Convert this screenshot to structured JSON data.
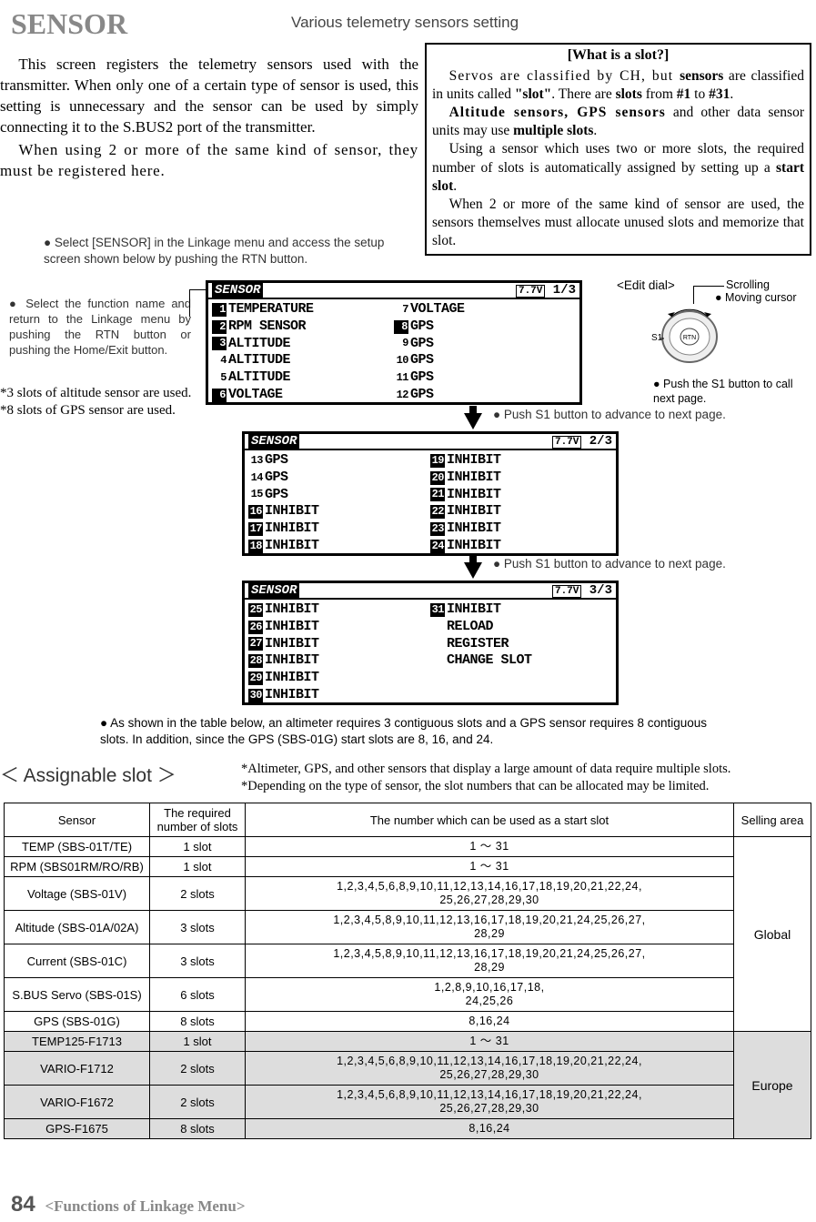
{
  "title": "SENSOR",
  "subtitle": "Various telemetry sensors setting",
  "intro": {
    "p1": "This screen registers the telemetry sensors used with the transmitter. When only one of a certain type of sensor is used, this setting is unnecessary and the sensor can be used by simply connecting it to the S.BUS2 port of the transmitter.",
    "p2": "When using 2 or more of the same kind of sensor, they must be registered here.",
    "bullet": "Select [SENSOR] in the Linkage menu and access the setup screen shown below by pushing the RTN button."
  },
  "slotbox": {
    "title": "[What is a slot?]",
    "p1_a": "Servos are classified by CH, but ",
    "p1_b": "sensors",
    "p1_c": " are classified in units called ",
    "p1_d": "\"slot\"",
    "p1_e": ". There are ",
    "p1_f": "slots",
    "p1_g": " from ",
    "p1_h": "#1",
    "p1_i": " to ",
    "p1_j": "#31",
    "p1_k": ".",
    "p2_a": "Altitude sensors, GPS sensors",
    "p2_b": " and other data sensor units may use ",
    "p2_c": "multiple slots",
    "p2_d": ".",
    "p3_a": "Using a sensor which uses two or more slots, the required number of slots is automatically assigned by setting up a ",
    "p3_b": "start slot",
    "p3_c": ".",
    "p4": "When 2 or more of the same kind of sensor are used, the sensors themselves must allocate unused slots and memorize that slot."
  },
  "left_note": "Select the function name and return to the Linkage menu by pushing the RTN button or pushing the Home/Exit button.",
  "star_notes": {
    "a": "*3 slots of altitude sensor are used.",
    "b": "*8 slots of GPS sensor are used."
  },
  "push_note": "Push S1 button to advance to next page.",
  "dial": {
    "edit": "<Edit dial>",
    "scroll": "Scrolling",
    "cursor": "Moving cursor",
    "s1": "Push the S1 button to call next page.",
    "s1_label": "S1",
    "rtn_label": "RTN"
  },
  "lcd_header": "SENSOR",
  "lcd_voltage": "7.7V",
  "lcd1": {
    "page": "1/3",
    "left": [
      {
        "n": "1",
        "t": "TEMPERATURE",
        "inv": true
      },
      {
        "n": "2",
        "t": "RPM SENSOR",
        "inv": true
      },
      {
        "n": "3",
        "t": "ALTITUDE",
        "inv": true
      },
      {
        "n": "4",
        "t": "ALTITUDE",
        "inv": false
      },
      {
        "n": "5",
        "t": "ALTITUDE",
        "inv": false
      },
      {
        "n": "6",
        "t": "VOLTAGE",
        "inv": true
      }
    ],
    "right": [
      {
        "n": "7",
        "t": "VOLTAGE",
        "inv": false
      },
      {
        "n": "8",
        "t": "GPS",
        "inv": true
      },
      {
        "n": "9",
        "t": "GPS",
        "inv": false
      },
      {
        "n": "10",
        "t": "GPS",
        "inv": false
      },
      {
        "n": "11",
        "t": "GPS",
        "inv": false
      },
      {
        "n": "12",
        "t": "GPS",
        "inv": false
      }
    ]
  },
  "lcd2": {
    "page": "2/3",
    "left": [
      {
        "n": "13",
        "t": "GPS",
        "inv": false
      },
      {
        "n": "14",
        "t": "GPS",
        "inv": false
      },
      {
        "n": "15",
        "t": "GPS",
        "inv": false
      },
      {
        "n": "16",
        "t": "INHIBIT",
        "inv": true
      },
      {
        "n": "17",
        "t": "INHIBIT",
        "inv": true
      },
      {
        "n": "18",
        "t": "INHIBIT",
        "inv": true
      }
    ],
    "right": [
      {
        "n": "19",
        "t": "INHIBIT",
        "inv": true
      },
      {
        "n": "20",
        "t": "INHIBIT",
        "inv": true
      },
      {
        "n": "21",
        "t": "INHIBIT",
        "inv": true
      },
      {
        "n": "22",
        "t": "INHIBIT",
        "inv": true
      },
      {
        "n": "23",
        "t": "INHIBIT",
        "inv": true
      },
      {
        "n": "24",
        "t": "INHIBIT",
        "inv": true
      }
    ]
  },
  "lcd3": {
    "page": "3/3",
    "left": [
      {
        "n": "25",
        "t": "INHIBIT",
        "inv": true
      },
      {
        "n": "26",
        "t": "INHIBIT",
        "inv": true
      },
      {
        "n": "27",
        "t": "INHIBIT",
        "inv": true
      },
      {
        "n": "28",
        "t": "INHIBIT",
        "inv": true
      },
      {
        "n": "29",
        "t": "INHIBIT",
        "inv": true
      },
      {
        "n": "30",
        "t": "INHIBIT",
        "inv": true
      }
    ],
    "right": [
      {
        "n": "31",
        "t": "INHIBIT",
        "inv": true
      },
      {
        "n": "",
        "t": "RELOAD",
        "inv": false
      },
      {
        "n": "",
        "t": "REGISTER",
        "inv": false
      },
      {
        "n": "",
        "t": "CHANGE SLOT",
        "inv": false
      }
    ]
  },
  "table_note": "As shown in the table below, an altimeter requires 3 contiguous slots and a GPS sensor requires 8 contiguous slots. In addition, since the GPS (SBS-01G) start slots are 8, 16, and 24.",
  "assignable": "＜ Assignable slot ＞",
  "table_stars": {
    "a": "*Altimeter, GPS, and other sensors that display a large amount of data require multiple slots.",
    "b": "*Depending on the type of sensor, the slot numbers that can be allocated may be limited."
  },
  "table": {
    "headers": [
      "Sensor",
      "The required number of slots",
      "The number which can be used as a start slot",
      "Selling area"
    ],
    "global": [
      {
        "sensor": "TEMP (SBS-01T/TE)",
        "slots": "1 slot",
        "start": "1 ～ 31"
      },
      {
        "sensor": "RPM (SBS01RM/RO/RB)",
        "slots": "1 slot",
        "start": "1 ～ 31"
      },
      {
        "sensor": "Voltage (SBS-01V)",
        "slots": "2 slots",
        "start": "1,2,3,4,5,6,8,9,10,11,12,13,14,16,17,18,19,20,21,22,24,\n25,26,27,28,29,30"
      },
      {
        "sensor": "Altitude (SBS-01A/02A)",
        "slots": "3 slots",
        "start": "1,2,3,4,5,8,9,10,11,12,13,16,17,18,19,20,21,24,25,26,27,\n28,29"
      },
      {
        "sensor": "Current (SBS-01C)",
        "slots": "3 slots",
        "start": "1,2,3,4,5,8,9,10,11,12,13,16,17,18,19,20,21,24,25,26,27,\n28,29"
      },
      {
        "sensor": "S.BUS Servo (SBS-01S)",
        "slots": "6 slots",
        "start": "1,2,8,9,10,16,17,18,\n24,25,26"
      },
      {
        "sensor": "GPS (SBS-01G)",
        "slots": "8 slots",
        "start": "8,16,24"
      }
    ],
    "global_area": "Global",
    "europe": [
      {
        "sensor": "TEMP125-F1713",
        "slots": "1 slot",
        "start": "1 ～ 31"
      },
      {
        "sensor": "VARIO-F1712",
        "slots": "2 slots",
        "start": "1,2,3,4,5,6,8,9,10,11,12,13,14,16,17,18,19,20,21,22,24,\n25,26,27,28,29,30"
      },
      {
        "sensor": "VARIO-F1672",
        "slots": "2 slots",
        "start": "1,2,3,4,5,6,8,9,10,11,12,13,14,16,17,18,19,20,21,22,24,\n25,26,27,28,29,30"
      },
      {
        "sensor": "GPS-F1675",
        "slots": "8 slots",
        "start": "8,16,24"
      }
    ],
    "europe_area": "Europe"
  },
  "footer": {
    "num": "84",
    "txt": "<Functions of Linkage Menu>"
  }
}
